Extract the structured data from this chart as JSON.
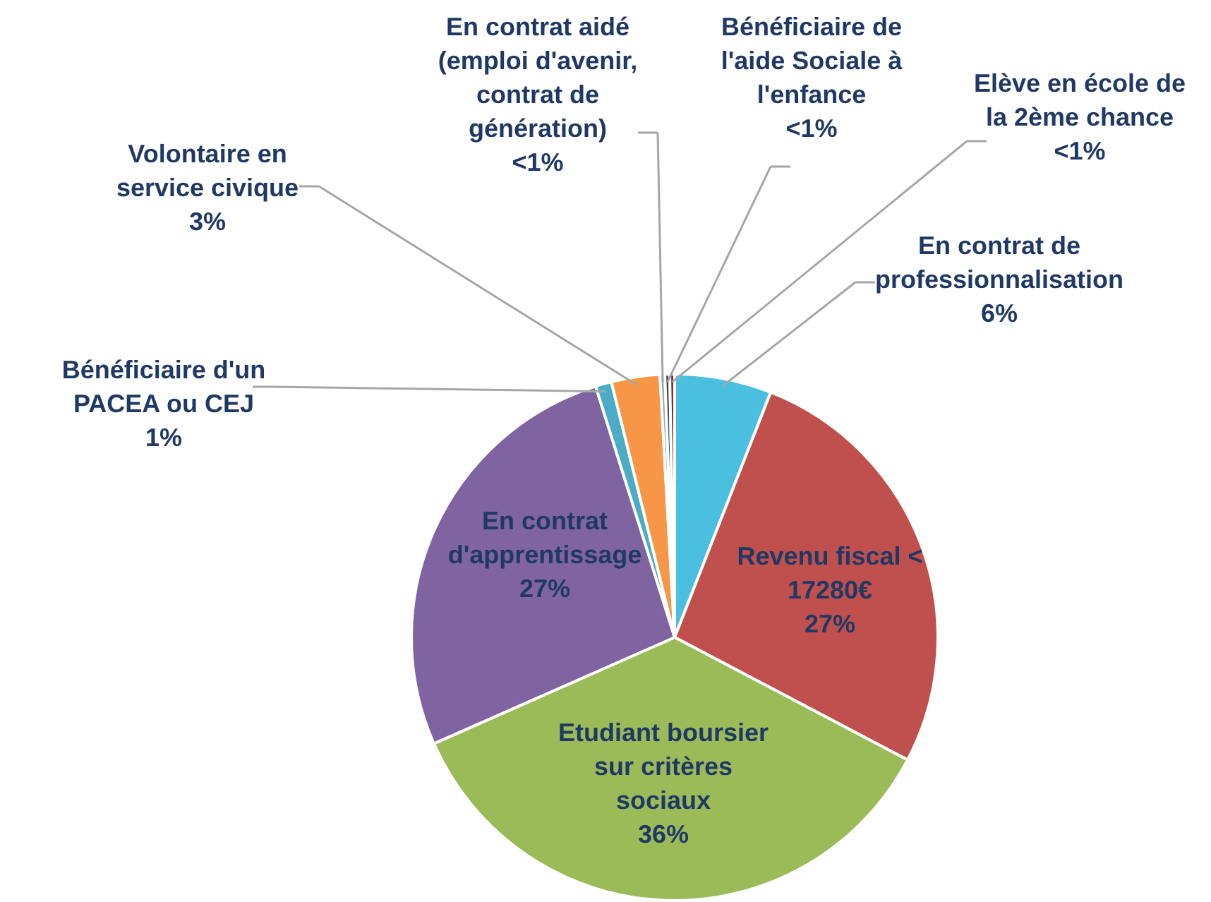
{
  "chart_data": {
    "type": "pie",
    "categories": [
      "En contrat de professionnalisation",
      "Revenu fiscal < 17280€",
      "Etudiant boursier sur critères sociaux",
      "En contrat d'apprentissage",
      "Bénéficiaire d'un PACEA ou CEJ",
      "Volontaire en service civique",
      "En contrat aidé (emploi d'avenir, contrat de génération)",
      "Bénéficiaire de l'aide Sociale à l'enfance",
      "Elève en école de la 2ème chance"
    ],
    "values": [
      6,
      27,
      36,
      27,
      1,
      3,
      0.3,
      0.3,
      0.3
    ],
    "value_labels": [
      "6%",
      "27%",
      "36%",
      "27%",
      "1%",
      "3%",
      "<1%",
      "<1%",
      "<1%"
    ],
    "colors": [
      "#4bbfe0",
      "#c0504d",
      "#9bbb59",
      "#8064a2",
      "#4aacc6",
      "#f79646",
      "#a5a5a5",
      "#2c4d75",
      "#772c2a"
    ],
    "legend": false
  }
}
